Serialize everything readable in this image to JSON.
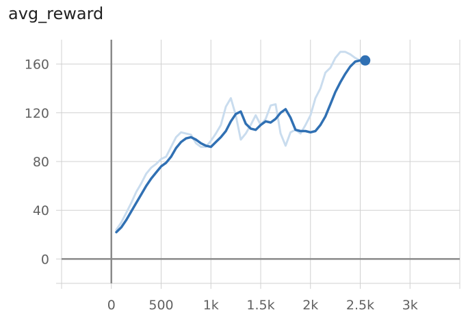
{
  "chart_data": {
    "type": "line",
    "title": "avg_reward",
    "xlabel": "",
    "ylabel": "",
    "xlim": [
      -500,
      3500
    ],
    "ylim": [
      -20,
      180
    ],
    "x_ticks": [
      {
        "value": -500,
        "label": ""
      },
      {
        "value": 0,
        "label": "0"
      },
      {
        "value": 500,
        "label": "500"
      },
      {
        "value": 1000,
        "label": "1k"
      },
      {
        "value": 1500,
        "label": "1.5k"
      },
      {
        "value": 2000,
        "label": "2k"
      },
      {
        "value": 2500,
        "label": "2.5k"
      },
      {
        "value": 3000,
        "label": "3k"
      },
      {
        "value": 3500,
        "label": ""
      }
    ],
    "y_ticks": [
      {
        "value": -20,
        "label": ""
      },
      {
        "value": 0,
        "label": "0"
      },
      {
        "value": 40,
        "label": "40"
      },
      {
        "value": 80,
        "label": "80"
      },
      {
        "value": 120,
        "label": "120"
      },
      {
        "value": 160,
        "label": "160"
      }
    ],
    "grid": true,
    "series": [
      {
        "role": "raw",
        "color": "#c9dcee",
        "x": [
          50,
          100,
          150,
          200,
          250,
          300,
          350,
          400,
          450,
          500,
          550,
          600,
          650,
          700,
          750,
          800,
          850,
          900,
          950,
          1000,
          1050,
          1100,
          1150,
          1200,
          1250,
          1300,
          1350,
          1400,
          1450,
          1500,
          1550,
          1600,
          1650,
          1700,
          1750,
          1800,
          1850,
          1900,
          1950,
          2000,
          2050,
          2100,
          2150,
          2200,
          2250,
          2300,
          2350,
          2400,
          2450,
          2500,
          2550
        ],
        "y": [
          24,
          30,
          38,
          46,
          55,
          62,
          70,
          75,
          78,
          82,
          84,
          92,
          100,
          104,
          103,
          102,
          95,
          92,
          92,
          97,
          103,
          110,
          125,
          132,
          118,
          98,
          103,
          110,
          118,
          110,
          115,
          126,
          127,
          103,
          93,
          104,
          106,
          103,
          110,
          118,
          132,
          140,
          153,
          157,
          165,
          170,
          170,
          168,
          165,
          163,
          163
        ]
      },
      {
        "role": "smoothed",
        "color": "#3070b3",
        "x": [
          50,
          100,
          150,
          200,
          250,
          300,
          350,
          400,
          450,
          500,
          550,
          600,
          650,
          700,
          750,
          800,
          850,
          900,
          950,
          1000,
          1050,
          1100,
          1150,
          1200,
          1250,
          1300,
          1350,
          1400,
          1450,
          1500,
          1550,
          1600,
          1650,
          1700,
          1750,
          1800,
          1850,
          1900,
          1950,
          2000,
          2050,
          2100,
          2150,
          2200,
          2250,
          2300,
          2350,
          2400,
          2450,
          2500,
          2550
        ],
        "y": [
          22,
          26,
          32,
          39,
          46,
          53,
          60,
          66,
          71,
          76,
          79,
          84,
          91,
          96,
          99,
          100,
          98,
          95,
          93,
          92,
          96,
          100,
          105,
          113,
          119,
          121,
          111,
          107,
          106,
          110,
          113,
          112,
          115,
          120,
          123,
          116,
          106,
          105,
          105,
          104,
          105,
          110,
          117,
          127,
          137,
          145,
          152,
          158,
          162,
          163,
          163
        ]
      }
    ],
    "endpoint": {
      "x": 2550,
      "y": 163
    }
  }
}
